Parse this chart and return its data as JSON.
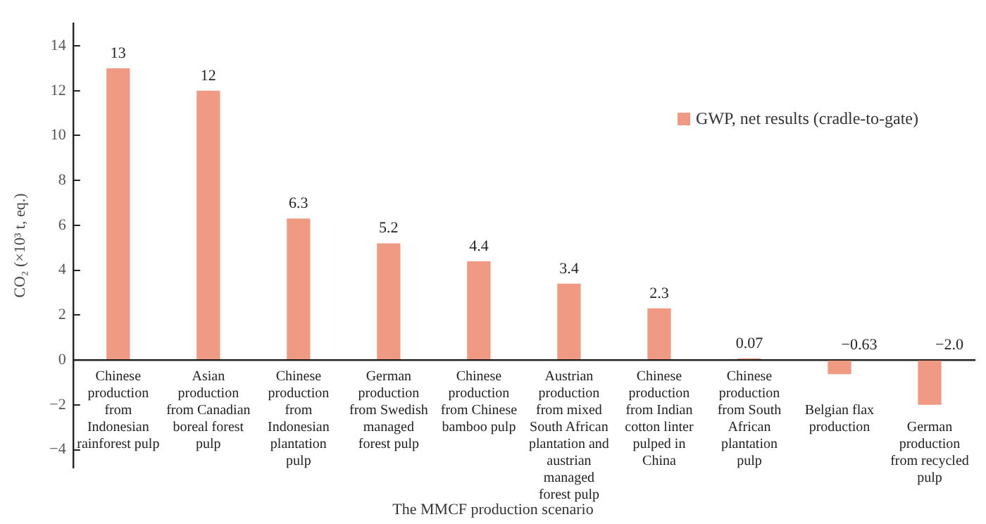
{
  "chart_data": {
    "type": "bar",
    "xlabel": "The MMCF production scenario",
    "ylabel": "CO₂ (×10³ t, eq.)",
    "categories": [
      "Chinese production from Indonesian rainforest pulp",
      "Asian production from Canadian boreal forest pulp",
      "Chinese production from Indonesian plantation pulp",
      "German production from Swedish managed forest pulp",
      "Chinese production from Chinese bamboo pulp",
      "Austrian production from mixed South African plantation and austrian managed forest pulp",
      "Chinese production from Indian cotton linter pulped in China",
      "Chinese production from South African plantation pulp",
      "Belgian flax production",
      "German production from recycled pulp"
    ],
    "series": [
      {
        "name": "GWP, net results (cradle-to-gate)",
        "color": "#f19a83",
        "values": [
          13,
          12,
          6.3,
          5.2,
          4.4,
          3.4,
          2.3,
          0.07,
          -0.63,
          -2.0
        ],
        "value_labels": [
          "13",
          "12",
          "6.3",
          "5.2",
          "4.4",
          "3.4",
          "2.3",
          "0.07",
          "−0.63",
          "−2.0"
        ]
      }
    ],
    "ylim": [
      -4.8,
      15
    ],
    "yticks": [
      -4,
      -2,
      0,
      2,
      4,
      6,
      8,
      10,
      12,
      14
    ],
    "grid": false,
    "legend": "top right"
  }
}
